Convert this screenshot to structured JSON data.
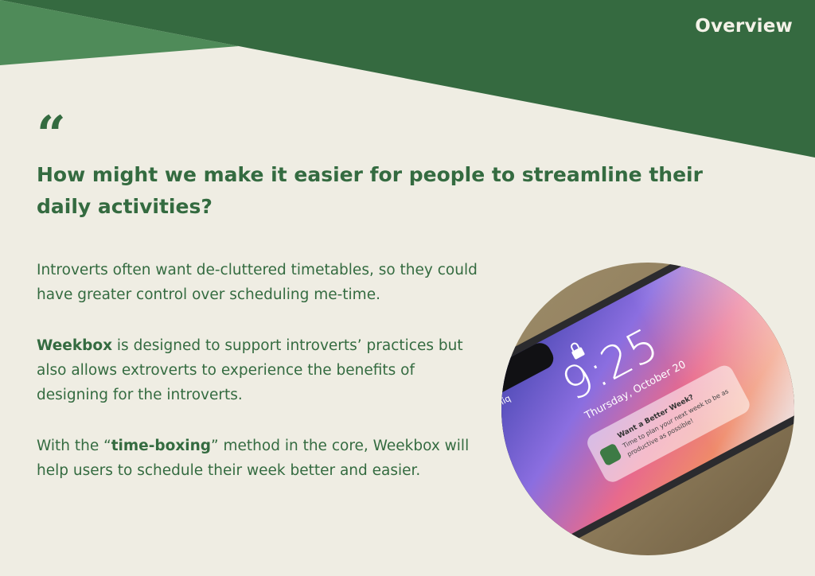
{
  "header": {
    "title": "Overview"
  },
  "quote": {
    "mark": "“"
  },
  "question": "How might we make it easier for people to streamline their daily activities?",
  "body": {
    "p1": "Introverts often want de-cluttered timetables, so they could have greater control over scheduling me-time.",
    "p2_bold": "Weekbox",
    "p2_rest": " is designed to support introverts’ practices but also allows extroverts to experience the benefits of designing for the introverts.",
    "p3_prefix": "With the “",
    "p3_bold": "time-boxing",
    "p3_rest": "” method in the core, Weekbox will help users to schedule their week better and easier."
  },
  "phone": {
    "time": "9:25",
    "date": "Thursday, October 20",
    "carrier": "Comiq",
    "notification_title": "Want a Better Week?",
    "notification_line1": "Time to plan your next week to be as",
    "notification_line2": "productive as possible!"
  },
  "colors": {
    "background": "#efede3",
    "primary_green": "#346b40",
    "light_green": "#4f8b59",
    "header_text": "#f4f2e8"
  },
  "icons": {
    "lock": "lock-icon",
    "app": "weekbox-app-icon"
  }
}
